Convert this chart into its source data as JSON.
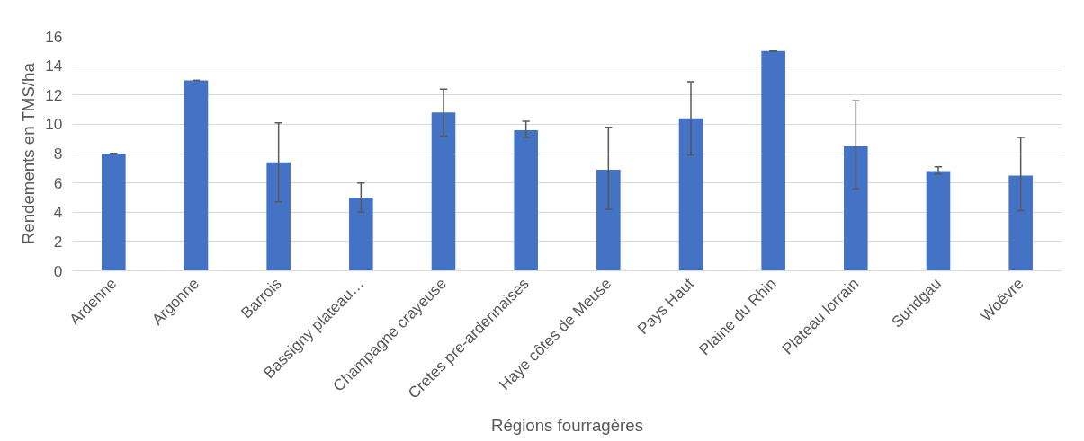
{
  "chart_data": {
    "type": "bar",
    "xlabel": "Régions fourragères",
    "ylabel": "Rendements en TMS/ha",
    "categories": [
      "Ardenne",
      "Argonne",
      "Barrois",
      "Bassigny plateau…",
      "Champagne crayeuse",
      "Cretes pre-ardennaises",
      "Haye côtes de Meuse",
      "Pays Haut",
      "Plaine du Rhin",
      "Plateau lorrain",
      "Sundgau",
      "Woëvre"
    ],
    "values": [
      8.0,
      13.0,
      7.4,
      5.0,
      10.8,
      9.6,
      6.9,
      10.4,
      15.0,
      8.5,
      6.8,
      6.5
    ],
    "errors": [
      [
        8.0,
        8.0
      ],
      [
        13.0,
        13.0
      ],
      [
        4.7,
        10.1
      ],
      [
        4.0,
        6.0
      ],
      [
        9.2,
        12.4
      ],
      [
        9.1,
        10.2
      ],
      [
        4.2,
        9.8
      ],
      [
        7.9,
        12.9
      ],
      [
        15.0,
        15.0
      ],
      [
        5.6,
        11.6
      ],
      [
        6.6,
        7.1
      ],
      [
        4.1,
        9.1
      ]
    ],
    "color": "#4472c4",
    "ylim": [
      0,
      16
    ],
    "yticks": [
      0,
      2,
      4,
      6,
      8,
      10,
      12,
      14,
      16
    ],
    "grid": "y"
  }
}
